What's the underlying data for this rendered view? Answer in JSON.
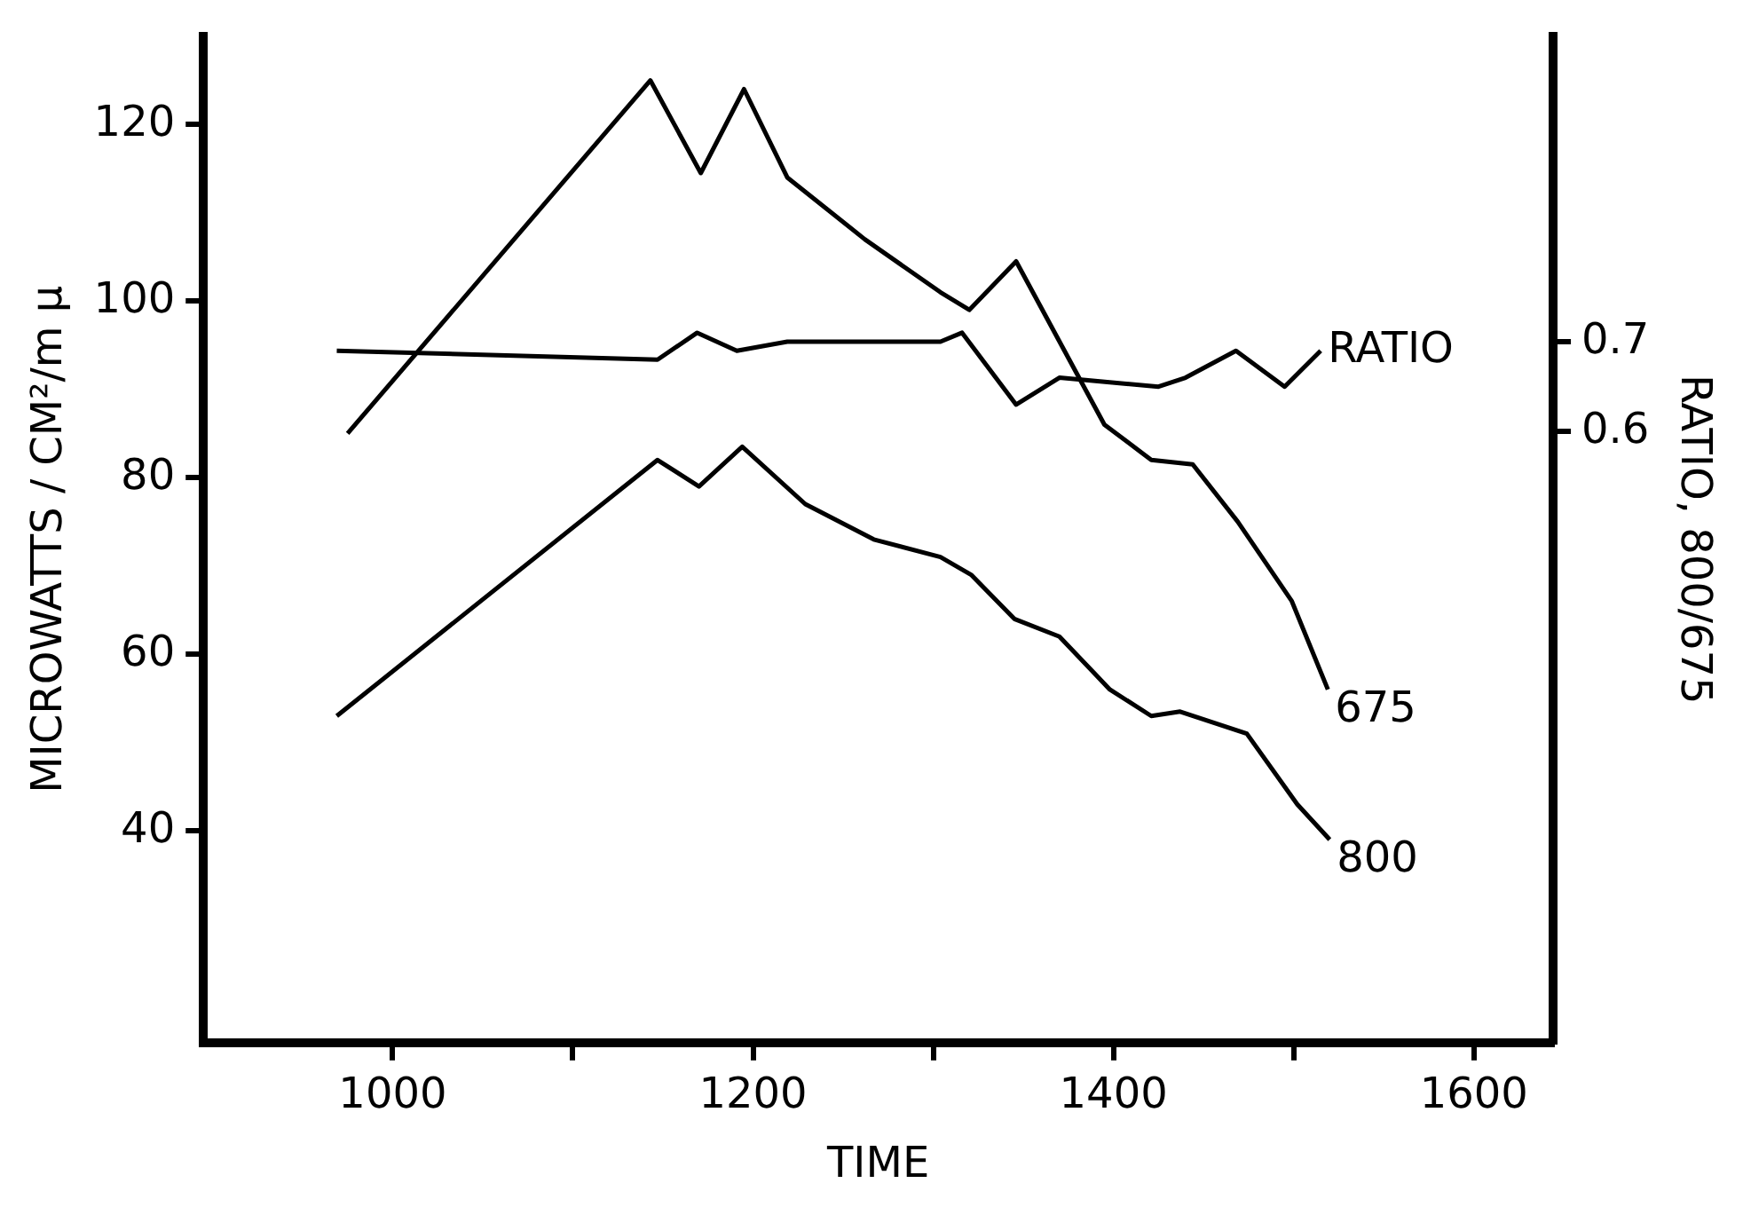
{
  "chart_data": {
    "type": "line",
    "xlabel": "TIME",
    "ylabel": "MICROWATTS / CM²/m µ",
    "y2label": "RATIO, 800/675",
    "xlim": [
      895,
      1644
    ],
    "xticks": [
      1000,
      {
        "value": 1100,
        "label": null
      },
      1200,
      {
        "value": 1300,
        "label": null
      },
      1400,
      {
        "value": 1500,
        "label": null
      },
      1600
    ],
    "ylim": [
      16,
      130
    ],
    "yticks": [
      40,
      60,
      80,
      100,
      120
    ],
    "y2lim": [
      -0.08,
      1.04
    ],
    "y2ticks": [
      0.6,
      0.7
    ],
    "grid": false,
    "legend": false,
    "marker": "none",
    "line_style": "solid",
    "series": [
      {
        "name": "675",
        "color": "#000000",
        "x": [
          975,
          1143,
          1171,
          1195,
          1219,
          1262,
          1304,
          1320,
          1346,
          1395,
          1421,
          1444,
          1469,
          1499,
          1519
        ],
        "values": [
          85,
          125,
          114.5,
          124,
          114,
          107,
          101,
          99,
          104.5,
          86,
          82,
          81.5,
          75,
          66,
          56
        ]
      },
      {
        "name": "800",
        "color": "#000000",
        "x": [
          969,
          1147,
          1170,
          1194,
          1229,
          1267,
          1304,
          1321,
          1345,
          1370,
          1398,
          1421,
          1437,
          1474,
          1502,
          1520
        ],
        "values": [
          53,
          82,
          79,
          83.5,
          77,
          73,
          71,
          69,
          64,
          62,
          56,
          53,
          53.5,
          51,
          43,
          39
        ]
      },
      {
        "name": "RATIO",
        "color": "#000000",
        "axis": "y2",
        "x": [
          969,
          1147,
          1169,
          1191,
          1219,
          1264,
          1304,
          1316,
          1346,
          1370,
          1425,
          1440,
          1468,
          1495,
          1515
        ],
        "values": [
          0.69,
          0.68,
          0.71,
          0.69,
          0.7,
          0.7,
          0.7,
          0.71,
          0.63,
          0.66,
          0.65,
          0.66,
          0.69,
          0.65,
          0.69
        ]
      }
    ]
  }
}
